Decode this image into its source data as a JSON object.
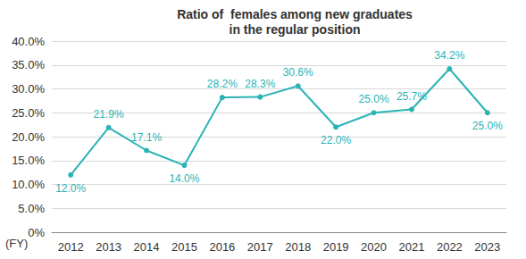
{
  "chart_data": {
    "type": "line",
    "title": "Ratio of  females among new graduates\nin the regular position",
    "xlabel": "(FY)",
    "categories": [
      "2012",
      "2013",
      "2014",
      "2015",
      "2016",
      "2017",
      "2018",
      "2019",
      "2020",
      "2021",
      "2022",
      "2023"
    ],
    "values": [
      12.0,
      21.9,
      17.1,
      14.0,
      28.2,
      28.3,
      30.6,
      22.0,
      25.0,
      25.7,
      34.2,
      25.0
    ],
    "value_labels": [
      "12.0%",
      "21.9%",
      "17.1%",
      "14.0%",
      "28.2%",
      "28.3%",
      "30.6%",
      "22.0%",
      "25.0%",
      "25.7%",
      "34.2%",
      "25.0%"
    ],
    "color": "#2ab3b5",
    "marker": "circle",
    "data_labels": true,
    "ylim": [
      0,
      40
    ],
    "yticks": [
      {
        "value": 0,
        "label": "0%"
      },
      {
        "value": 5,
        "label": "5.0%"
      },
      {
        "value": 10,
        "label": "10.0%"
      },
      {
        "value": 15,
        "label": "15.0%"
      },
      {
        "value": 20,
        "label": "20.0%"
      },
      {
        "value": 25,
        "label": "25.0%"
      },
      {
        "value": 30,
        "label": "30.0%"
      },
      {
        "value": 35,
        "label": "35.0%"
      },
      {
        "value": 40,
        "label": "40.0%"
      }
    ],
    "grid": true
  }
}
